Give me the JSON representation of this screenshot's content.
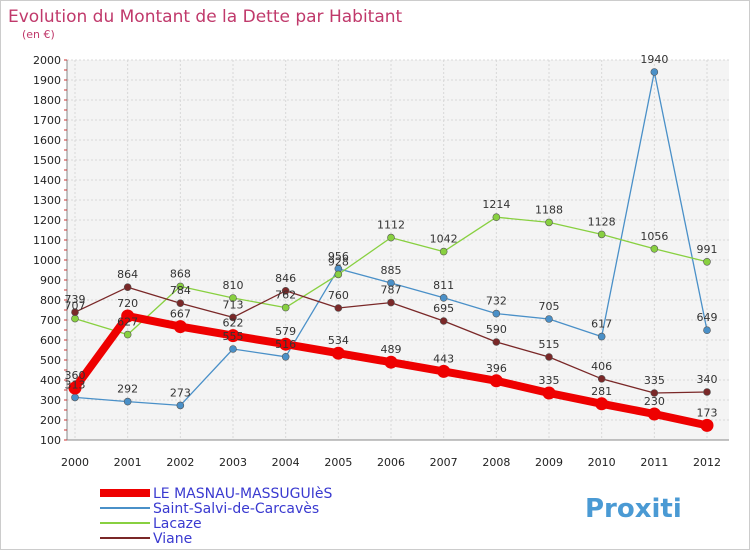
{
  "chart_data": {
    "type": "line",
    "title": "Evolution du Montant de la Dette par Habitant",
    "subtitle": "(en €)",
    "xlabel": "",
    "ylabel": "",
    "categories": [
      "2000",
      "2001",
      "2002",
      "2003",
      "2004",
      "2005",
      "2006",
      "2007",
      "2008",
      "2009",
      "2010",
      "2011",
      "2012"
    ],
    "ylim": [
      100,
      2000
    ],
    "yticks": [
      100,
      200,
      300,
      400,
      500,
      600,
      700,
      800,
      900,
      1000,
      1100,
      1200,
      1300,
      1400,
      1500,
      1600,
      1700,
      1800,
      1900,
      2000
    ],
    "grid": true,
    "legend_position": "bottom-left",
    "series": [
      {
        "name": "Saint-Salvi-de-Carcavès",
        "color": "#4a90c8",
        "values": [
          313,
          292,
          273,
          555,
          516,
          956,
          885,
          811,
          732,
          705,
          617,
          1940,
          649
        ],
        "labels": [
          "313",
          "292",
          "273",
          "555",
          "516",
          "956",
          "885",
          "811",
          "732",
          "705",
          "617",
          "1940",
          "649"
        ]
      },
      {
        "name": "Lacaze",
        "color": "#88d040",
        "values": [
          707,
          627,
          868,
          810,
          762,
          928,
          1112,
          1042,
          1214,
          1188,
          1128,
          1056,
          991
        ],
        "labels": [
          "707",
          "627",
          "868",
          "810",
          "762",
          "928",
          "1112",
          "1042",
          "1214",
          "1188",
          "1128",
          "1056",
          "991"
        ]
      },
      {
        "name": "Viane",
        "color": "#7a2828",
        "values": [
          739,
          864,
          784,
          713,
          846,
          760,
          787,
          695,
          590,
          515,
          406,
          335,
          340
        ],
        "labels": [
          "739",
          "864",
          "784",
          "713",
          "846",
          "760",
          "787",
          "695",
          "590",
          "515",
          "406",
          "335",
          "340"
        ]
      },
      {
        "name": "LE MASNAU-MASSUGUIèS",
        "color": "#ee0000",
        "values": [
          360,
          720,
          667,
          622,
          579,
          534,
          489,
          443,
          396,
          335,
          281,
          230,
          173
        ],
        "labels": [
          "360",
          "720",
          "667",
          "622",
          "579",
          "534",
          "489",
          "443",
          "396",
          "335",
          "281",
          "230",
          "173"
        ]
      }
    ],
    "legend": [
      "LE MASNAU-MASSUGUIèS",
      "Saint-Salvi-de-Carcavès",
      "Lacaze",
      "Viane"
    ]
  },
  "brand": {
    "text": "Proxiti"
  }
}
